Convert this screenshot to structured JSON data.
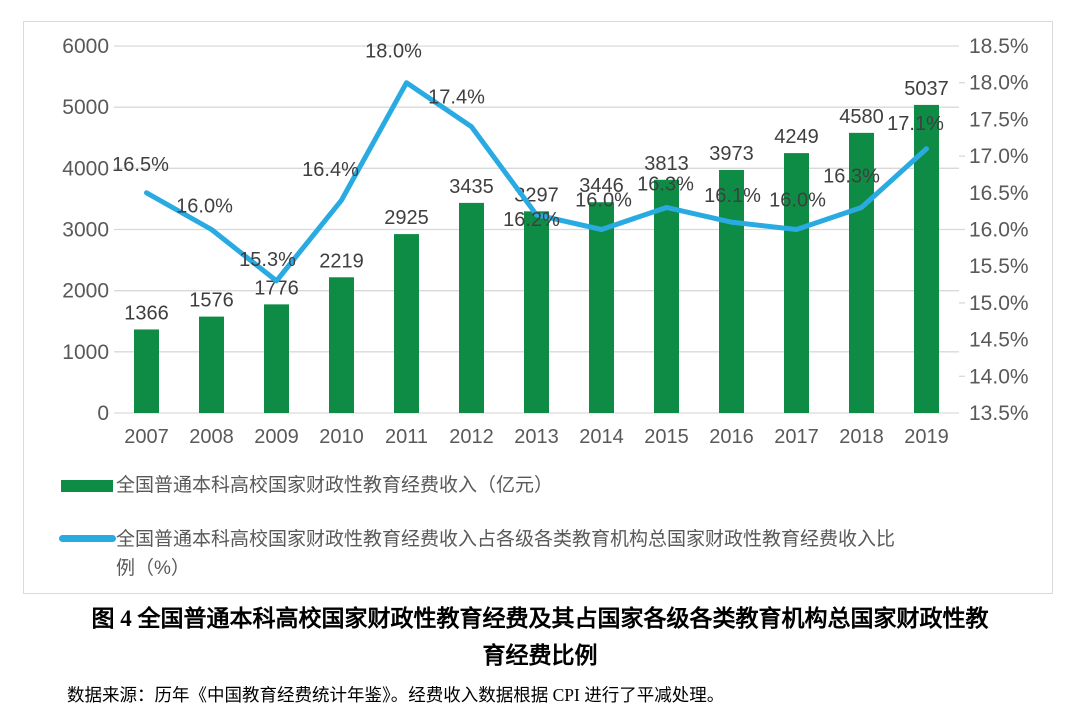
{
  "chart_data": {
    "type": "combo-bar-line",
    "title": "图 4 全国普通本科高校国家财政性教育经费及其占国家各级各类教育机构总国家财政性教\n育经费比例",
    "source_note": "数据来源：历年《中国教育经费统计年鉴》。经费收入数据根据 CPI 进行了平减处理。",
    "categories": [
      "2007",
      "2008",
      "2009",
      "2010",
      "2011",
      "2012",
      "2013",
      "2014",
      "2015",
      "2016",
      "2017",
      "2018",
      "2019"
    ],
    "series": [
      {
        "name": "全国普通本科高校国家财政性教育经费收入（亿元）",
        "type": "bar",
        "axis": "left",
        "color": "#0E8C45",
        "values": [
          1366,
          1576,
          1776,
          2219,
          2925,
          3435,
          3297,
          3446,
          3813,
          3973,
          4249,
          4580,
          5037
        ],
        "labels": [
          "1366",
          "1576",
          "1776",
          "2219",
          "2925",
          "3435",
          "3297",
          "3446",
          "3813",
          "3973",
          "4249",
          "4580",
          "5037"
        ]
      },
      {
        "name": "全国普通本科高校国家财政性教育经费收入占各级各类教育机构总国家财政性教育经费收入比\n例（%）",
        "type": "line",
        "axis": "right",
        "color": "#29ABE2",
        "values": [
          16.5,
          16.0,
          15.3,
          16.4,
          18.0,
          17.4,
          16.2,
          16.0,
          16.3,
          16.1,
          16.0,
          16.3,
          17.1
        ],
        "labels": [
          "16.5%",
          "16.0%",
          "15.3%",
          "16.4%",
          "18.0%",
          "17.4%",
          "16.2%",
          "16.0%",
          "16.3%",
          "16.1%",
          "16.0%",
          "16.3%",
          "17.1%"
        ]
      }
    ],
    "left_axis": {
      "min": 0,
      "max": 6000,
      "step": 1000,
      "ticks": [
        "6000",
        "5000",
        "4000",
        "3000",
        "2000",
        "1000",
        "0"
      ]
    },
    "right_axis": {
      "min": 13.5,
      "max": 18.5,
      "step": 0.5,
      "ticks": [
        "18.5%",
        "18.0%",
        "17.5%",
        "17.0%",
        "16.5%",
        "16.0%",
        "15.5%",
        "15.0%",
        "14.5%",
        "14.0%",
        "13.5%"
      ]
    },
    "grid": true,
    "legend_position": "bottom"
  },
  "colors": {
    "bar_green": "#0E8C45",
    "line_blue": "#29ABE2",
    "gridline": "#D9D9D9",
    "axis_text": "#595959",
    "data_label_text": "#3F3F3F",
    "caption_text": "#000000"
  }
}
